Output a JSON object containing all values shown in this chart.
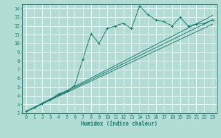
{
  "xlabel": "Humidex (Indice chaleur)",
  "bg_color": "#b2ddd4",
  "grid_color": "#ffffff",
  "line_color": "#1a7a6e",
  "xlim": [
    -0.5,
    23.5
  ],
  "ylim": [
    2,
    14.5
  ],
  "xticks": [
    0,
    1,
    2,
    3,
    4,
    5,
    6,
    7,
    8,
    9,
    10,
    11,
    12,
    13,
    14,
    15,
    16,
    17,
    18,
    19,
    20,
    21,
    22,
    23
  ],
  "yticks": [
    2,
    3,
    4,
    5,
    6,
    7,
    8,
    9,
    10,
    11,
    12,
    13,
    14
  ],
  "line1_x": [
    0,
    1,
    2,
    3,
    4,
    5,
    6,
    7,
    8,
    9,
    10,
    11,
    12,
    13,
    14,
    15,
    16,
    17,
    18,
    19,
    20,
    21,
    22,
    23
  ],
  "line1_y": [
    2.2,
    2.6,
    3.1,
    3.6,
    4.2,
    4.5,
    5.2,
    8.2,
    11.1,
    10.0,
    11.7,
    12.0,
    12.3,
    11.7,
    14.3,
    13.3,
    12.7,
    12.5,
    12.0,
    13.0,
    12.0,
    12.2,
    12.3,
    12.7
  ],
  "line2_x": [
    0,
    23
  ],
  "line2_y": [
    2.2,
    12.7
  ],
  "line3_x": [
    0,
    23
  ],
  "line3_y": [
    2.2,
    12.2
  ],
  "line4_x": [
    0,
    23
  ],
  "line4_y": [
    2.2,
    13.2
  ]
}
